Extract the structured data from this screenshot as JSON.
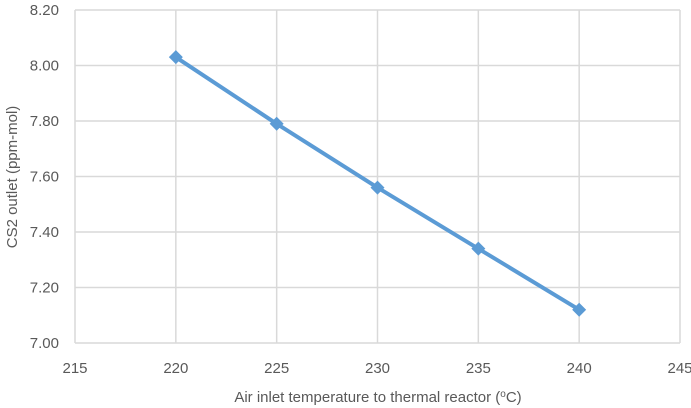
{
  "chart_data": {
    "type": "line",
    "title": "",
    "xlabel": "Air inlet temperature to thermal reactor (",
    "xlabel_sup": "o",
    "xlabel_suffix": "C)",
    "ylabel": "CS2 outlet (ppm-mol)",
    "xlim": [
      215,
      245
    ],
    "ylim": [
      7.0,
      8.2
    ],
    "x_ticks": [
      "215",
      "220",
      "225",
      "230",
      "235",
      "240",
      "245"
    ],
    "y_ticks": [
      "7.00",
      "7.20",
      "7.40",
      "7.60",
      "7.80",
      "8.00",
      "8.20"
    ],
    "grid": true,
    "legend": "none",
    "series": [
      {
        "color": "#5b9bd5",
        "marker": "diamond",
        "x": [
          220,
          225,
          230,
          235,
          240
        ],
        "y": [
          8.03,
          7.79,
          7.56,
          7.34,
          7.12
        ]
      }
    ]
  }
}
